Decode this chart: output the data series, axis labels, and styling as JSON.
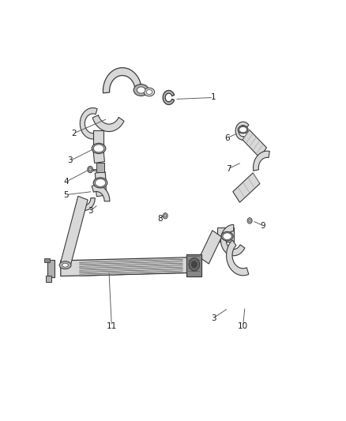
{
  "background_color": "#ffffff",
  "fig_width": 4.38,
  "fig_height": 5.33,
  "dpi": 100,
  "lc": "#3a3a3a",
  "fc_light": "#d8d8d8",
  "fc_mid": "#b0b0b0",
  "fc_dark": "#888888",
  "fc_darker": "#666666",
  "labels": {
    "1": [
      0.635,
      0.855,
      0.52,
      0.845
    ],
    "2": [
      0.115,
      0.745,
      0.245,
      0.795
    ],
    "3a": [
      0.1,
      0.66,
      0.195,
      0.685
    ],
    "3b": [
      0.175,
      0.505,
      0.21,
      0.53
    ],
    "3c": [
      0.635,
      0.17,
      0.695,
      0.19
    ],
    "4": [
      0.085,
      0.595,
      0.155,
      0.605
    ],
    "5": [
      0.085,
      0.555,
      0.175,
      0.565
    ],
    "6": [
      0.685,
      0.73,
      0.73,
      0.745
    ],
    "7": [
      0.69,
      0.635,
      0.73,
      0.645
    ],
    "8": [
      0.435,
      0.48,
      0.46,
      0.49
    ],
    "9": [
      0.82,
      0.46,
      0.79,
      0.47
    ],
    "10": [
      0.745,
      0.15,
      0.755,
      0.195
    ],
    "11": [
      0.255,
      0.15,
      0.245,
      0.315
    ]
  },
  "label_texts": {
    "1": "1",
    "2": "2",
    "3a": "3",
    "3b": "3",
    "3c": "3",
    "4": "4",
    "5": "5",
    "6": "6",
    "7": "7",
    "8": "8",
    "9": "9",
    "10": "10",
    "11": "11"
  }
}
